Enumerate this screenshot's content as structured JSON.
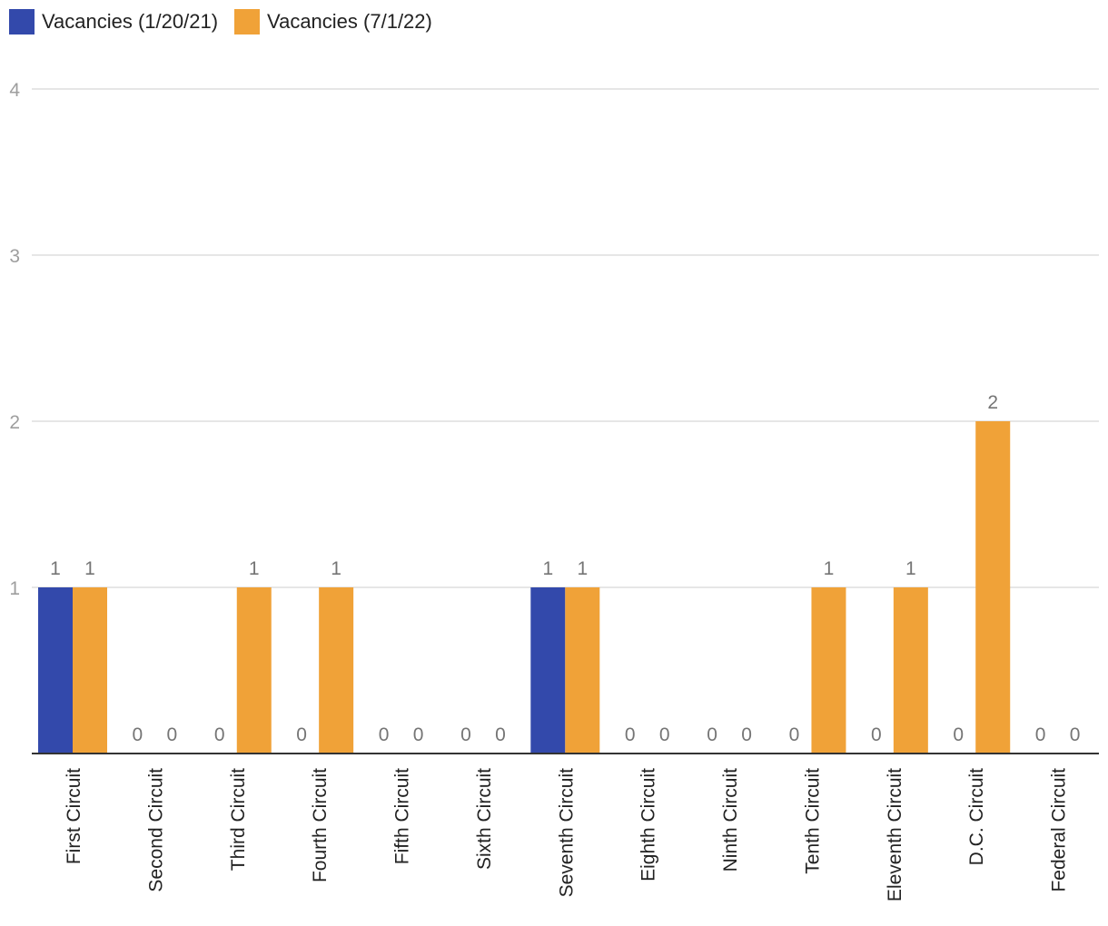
{
  "chart_data": {
    "type": "bar",
    "categories": [
      "First Circuit",
      "Second Circuit",
      "Third Circuit",
      "Fourth Circuit",
      "Fifth Circuit",
      "Sixth Circuit",
      "Seventh Circuit",
      "Eighth Circuit",
      "Ninth Circuit",
      "Tenth Circuit",
      "Eleventh Circuit",
      "D.C. Circuit",
      "Federal Circuit"
    ],
    "series": [
      {
        "name": "Vacancies (1/20/21)",
        "color": "#3349ab",
        "values": [
          1,
          0,
          0,
          0,
          0,
          0,
          1,
          0,
          0,
          0,
          0,
          0,
          0
        ]
      },
      {
        "name": "Vacancies (7/1/22)",
        "color": "#f0a238",
        "values": [
          1,
          0,
          1,
          1,
          0,
          0,
          1,
          0,
          0,
          1,
          1,
          2,
          0
        ]
      }
    ],
    "title": "",
    "xlabel": "",
    "ylabel": "",
    "ylim": [
      0,
      4
    ],
    "yticks": [
      1,
      2,
      3,
      4
    ],
    "grid": true,
    "legend_position": "top-left",
    "data_labels": true
  }
}
